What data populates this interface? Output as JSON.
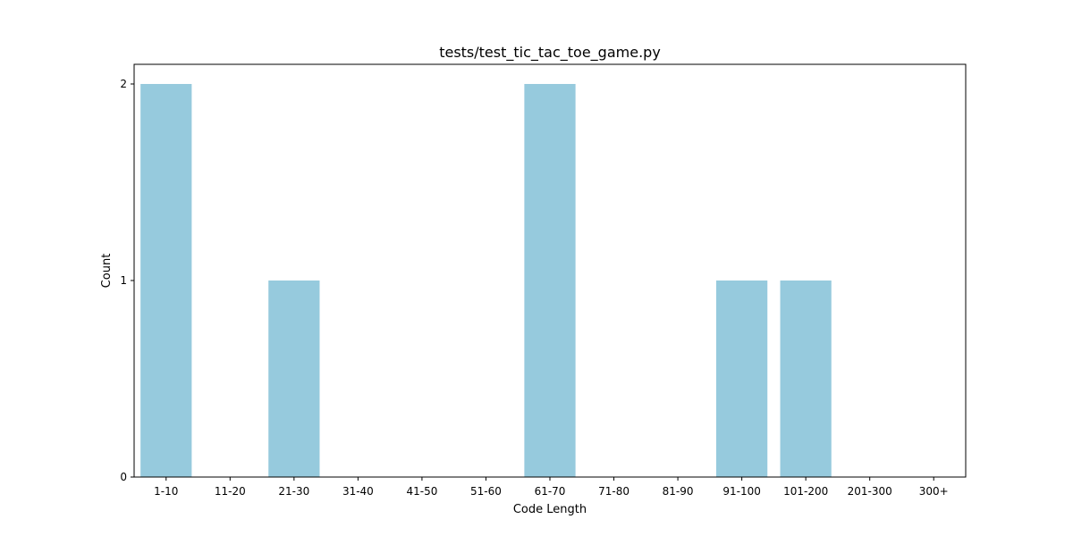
{
  "chart_data": {
    "type": "bar",
    "title": "tests/test_tic_tac_toe_game.py",
    "xlabel": "Code Length",
    "ylabel": "Count",
    "categories": [
      "1-10",
      "11-20",
      "21-30",
      "31-40",
      "41-50",
      "51-60",
      "61-70",
      "71-80",
      "81-90",
      "91-100",
      "101-200",
      "201-300",
      "300+"
    ],
    "values": [
      2,
      0,
      1,
      0,
      0,
      0,
      2,
      0,
      0,
      1,
      1,
      0,
      0
    ],
    "yticks": [
      0,
      1,
      2
    ],
    "ylim": [
      0,
      2.1
    ],
    "grid": false,
    "legend": null,
    "bar_color": "#96cadd"
  }
}
